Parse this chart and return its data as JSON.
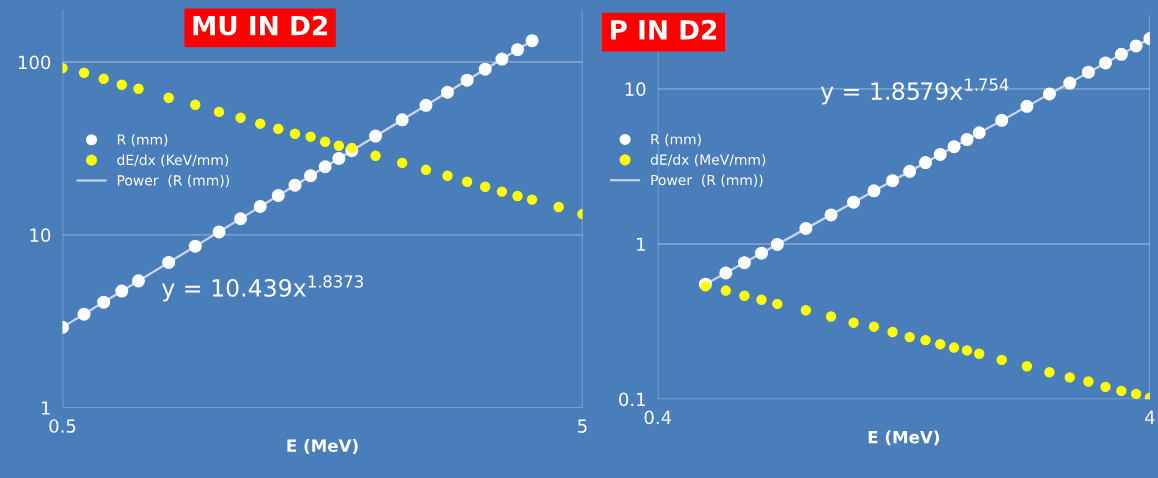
{
  "chart_data": [
    {
      "type": "scatter",
      "title": "MU IN D2",
      "xlabel": "E (MeV)",
      "log": "xy",
      "grid": true,
      "legend": "left",
      "marker": "circle",
      "xlim": [
        0.5,
        5
      ],
      "xticks": [
        0.5,
        5
      ],
      "ylim": [
        1,
        200
      ],
      "yticks": [
        1,
        10,
        100
      ],
      "annotations": [
        "y = 10.439x$^{1.8373}$"
      ],
      "series": [
        {
          "name": "R (mm)",
          "color": "#ffffff",
          "x": [
            0.5,
            0.55,
            0.6,
            0.65,
            0.7,
            0.8,
            0.9,
            1.0,
            1.1,
            1.2,
            1.3,
            1.4,
            1.5,
            1.6,
            1.7,
            1.8,
            2.0,
            2.25,
            2.5,
            2.75,
            3.0,
            3.25,
            3.5,
            3.75,
            4.0
          ],
          "values": [
            2.92,
            3.48,
            4.08,
            4.73,
            5.42,
            6.93,
            8.6,
            10.4,
            12.4,
            14.6,
            16.9,
            19.4,
            22.0,
            24.8,
            27.7,
            30.7,
            37.3,
            46.3,
            56.2,
            66.9,
            78.6,
            91.0,
            104,
            118,
            133
          ]
        },
        {
          "name": "dE/dx (KeV/mm)",
          "color": "#ffff00",
          "x": [
            0.5,
            0.55,
            0.6,
            0.65,
            0.7,
            0.8,
            0.9,
            1.0,
            1.1,
            1.2,
            1.3,
            1.4,
            1.5,
            1.6,
            1.7,
            1.8,
            2.0,
            2.25,
            2.5,
            2.75,
            3.0,
            3.25,
            3.5,
            3.75,
            4.0,
            4.5,
            5.0
          ],
          "values": [
            92.3,
            86.7,
            80.0,
            73.9,
            70.1,
            62.2,
            56.6,
            51.5,
            47.6,
            44.0,
            41.1,
            38.5,
            37.0,
            34.6,
            32.8,
            31.9,
            28.7,
            26.1,
            23.8,
            22.0,
            20.3,
            19.0,
            17.8,
            16.8,
            16.0,
            14.5,
            13.2
          ]
        },
        {
          "name": "Power  (R (mm))",
          "type": "line",
          "marker": "none",
          "color": "#c8d4e8",
          "x": [
            0.5,
            4.0
          ],
          "values": [
            2.92,
            133
          ]
        }
      ]
    },
    {
      "type": "scatter",
      "title": "P IN D2",
      "xlabel": "E (MeV)",
      "log": "xy",
      "grid": true,
      "legend": "left",
      "marker": "circle",
      "xlim": [
        0.4,
        4
      ],
      "xticks": [
        0.4,
        4
      ],
      "ylim": [
        0.1,
        30
      ],
      "yticks": [
        0.1,
        1,
        10
      ],
      "annotations": [
        "y = 1.8579x$^{1.754}$"
      ],
      "series": [
        {
          "name": "R (mm)",
          "color": "#ffffff",
          "x": [
            0.5,
            0.55,
            0.6,
            0.65,
            0.7,
            0.8,
            0.9,
            1.0,
            1.1,
            1.2,
            1.3,
            1.4,
            1.5,
            1.6,
            1.7,
            1.8,
            2.0,
            2.25,
            2.5,
            2.75,
            3.0,
            3.25,
            3.5,
            3.75,
            4.0
          ],
          "values": [
            0.551,
            0.651,
            0.758,
            0.872,
            0.994,
            1.26,
            1.54,
            1.86,
            2.2,
            2.56,
            2.94,
            3.35,
            3.78,
            4.24,
            4.71,
            5.21,
            6.27,
            7.71,
            9.27,
            10.9,
            12.8,
            14.7,
            16.7,
            18.9,
            21.1
          ]
        },
        {
          "name": "dE/dx (MeV/mm)",
          "color": "#ffff00",
          "x": [
            0.5,
            0.55,
            0.6,
            0.65,
            0.7,
            0.8,
            0.9,
            1.0,
            1.1,
            1.2,
            1.3,
            1.4,
            1.5,
            1.6,
            1.7,
            1.8,
            2.0,
            2.25,
            2.5,
            2.75,
            3.0,
            3.25,
            3.5,
            3.75,
            4.0
          ],
          "values": [
            0.533,
            0.501,
            0.464,
            0.437,
            0.411,
            0.374,
            0.341,
            0.311,
            0.293,
            0.271,
            0.251,
            0.24,
            0.226,
            0.215,
            0.206,
            0.196,
            0.179,
            0.163,
            0.149,
            0.138,
            0.13,
            0.12,
            0.113,
            0.108,
            0.102
          ]
        },
        {
          "name": "Power  (R (mm))",
          "type": "line",
          "marker": "none",
          "color": "#c8d4e8",
          "x": [
            0.5,
            4.0
          ],
          "values": [
            0.551,
            21.1
          ]
        }
      ]
    }
  ]
}
